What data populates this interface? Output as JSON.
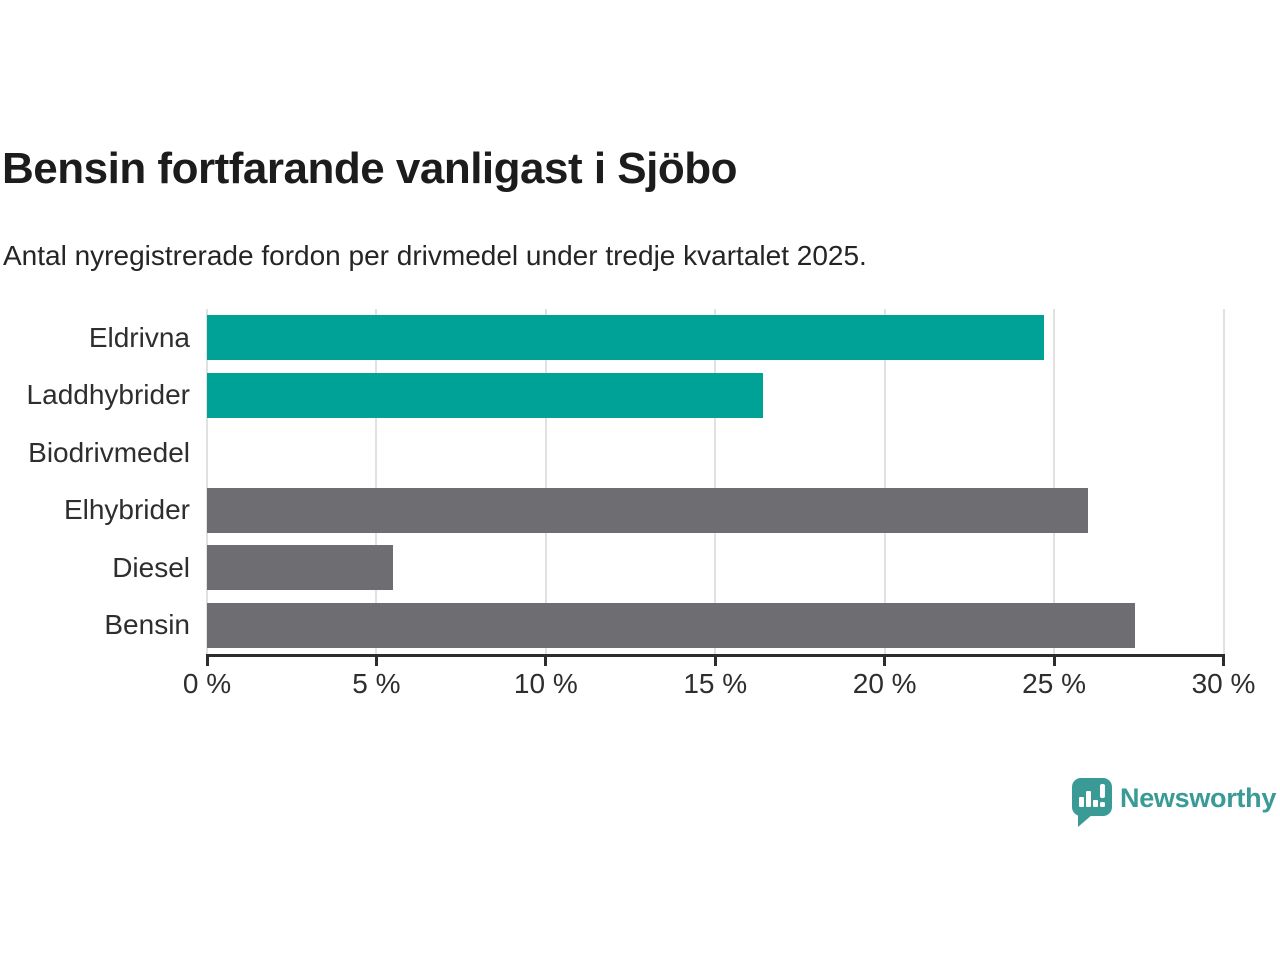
{
  "title": "Bensin fortfarande vanligast i Sjöbo",
  "subtitle": "Antal nyregistrerade fordon per drivmedel under tredje kvartalet 2025.",
  "chart_data": {
    "type": "bar",
    "orientation": "horizontal",
    "title": "Bensin fortfarande vanligast i Sjöbo",
    "subtitle": "Antal nyregistrerade fordon per drivmedel under tredje kvartalet 2025.",
    "categories": [
      "Eldrivna",
      "Laddhybrider",
      "Biodrivmedel",
      "Elhybrider",
      "Diesel",
      "Bensin"
    ],
    "values": [
      24.7,
      16.4,
      0,
      26.0,
      5.5,
      27.4
    ],
    "value_unit": "%",
    "bar_colors": [
      "#00a298",
      "#00a298",
      "#00a298",
      "#6d6d72",
      "#6d6d72",
      "#6d6d72"
    ],
    "xlim": [
      0,
      30
    ],
    "x_ticks": [
      0,
      5,
      10,
      15,
      20,
      25,
      30
    ],
    "x_tick_labels": [
      "0 %",
      "5 %",
      "10 %",
      "15 %",
      "20 %",
      "25 %",
      "30 %"
    ],
    "grid": true,
    "legend": false
  },
  "branding": {
    "name": "Newsworthy",
    "logo_icon": "newsworthy-speech-bubble-barchart-icon",
    "accent_color": "#3a9a96"
  },
  "colors": {
    "highlight_bar": "#00a298",
    "default_bar": "#6d6d72",
    "gridline": "#e1e1e1",
    "axis": "#2d2d2d",
    "text": "#2e2e2e",
    "title_text": "#1c1c1c"
  }
}
